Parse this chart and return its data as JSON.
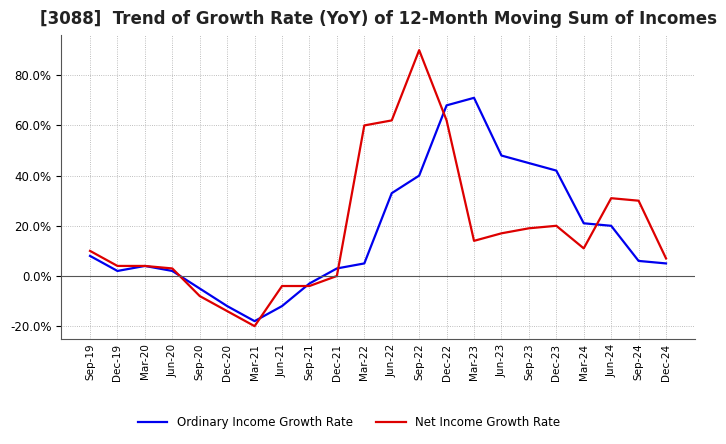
{
  "title": "[3088]  Trend of Growth Rate (YoY) of 12-Month Moving Sum of Incomes",
  "title_fontsize": 12,
  "x_labels": [
    "Sep-19",
    "Dec-19",
    "Mar-20",
    "Jun-20",
    "Sep-20",
    "Dec-20",
    "Mar-21",
    "Jun-21",
    "Sep-21",
    "Dec-21",
    "Mar-22",
    "Jun-22",
    "Sep-22",
    "Dec-22",
    "Mar-23",
    "Jun-23",
    "Sep-23",
    "Dec-23",
    "Mar-24",
    "Jun-24",
    "Sep-24",
    "Dec-24"
  ],
  "ordinary_income": [
    0.08,
    0.02,
    0.04,
    0.02,
    -0.05,
    -0.12,
    -0.18,
    -0.12,
    -0.03,
    0.03,
    0.05,
    0.33,
    0.4,
    0.68,
    0.71,
    0.48,
    0.45,
    0.42,
    0.21,
    0.2,
    0.06,
    0.05
  ],
  "net_income": [
    0.1,
    0.04,
    0.04,
    0.03,
    -0.08,
    -0.14,
    -0.2,
    -0.04,
    -0.04,
    0.0,
    0.6,
    0.62,
    0.9,
    0.62,
    0.14,
    0.17,
    0.19,
    0.2,
    0.11,
    0.31,
    0.3,
    0.07
  ],
  "ordinary_color": "#0000ee",
  "net_color": "#dd0000",
  "ylim": [
    -0.25,
    0.96
  ],
  "yticks": [
    -0.2,
    0.0,
    0.2,
    0.4,
    0.6,
    0.8
  ],
  "background_color": "#ffffff",
  "grid_color": "#aaaaaa",
  "legend_labels": [
    "Ordinary Income Growth Rate",
    "Net Income Growth Rate"
  ]
}
